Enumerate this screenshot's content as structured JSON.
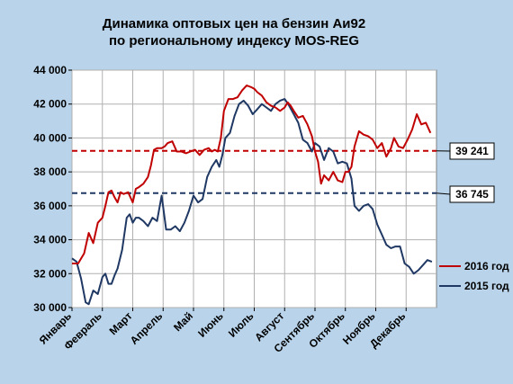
{
  "chart_data": {
    "type": "line",
    "title_lines": [
      "Динамика оптовых цен на бензин Аи92",
      "по региональному индексу MOS-REG"
    ],
    "ylim": [
      30000,
      44000
    ],
    "yticks": [
      30000,
      32000,
      34000,
      36000,
      38000,
      40000,
      42000,
      44000
    ],
    "ytick_labels": [
      "30 000",
      "32 000",
      "34 000",
      "36 000",
      "38 000",
      "40 000",
      "42 000",
      "44 000"
    ],
    "x_domain": [
      0,
      12
    ],
    "months": [
      "Январь",
      "Февраль",
      "Март",
      "Апрель",
      "Май",
      "Июнь",
      "Июль",
      "Август",
      "Сентябрь",
      "Октябрь",
      "Ноябрь",
      "Декабрь"
    ],
    "grid": true,
    "legend_position": "right",
    "series": [
      {
        "name": "2016 год",
        "color": "#c00000",
        "x": [
          0.0,
          0.2,
          0.4,
          0.55,
          0.7,
          0.85,
          1.0,
          1.1,
          1.2,
          1.3,
          1.4,
          1.5,
          1.6,
          1.7,
          1.85,
          2.0,
          2.1,
          2.2,
          2.35,
          2.5,
          2.6,
          2.7,
          2.8,
          2.95,
          3.05,
          3.15,
          3.3,
          3.45,
          3.6,
          3.75,
          3.9,
          4.05,
          4.2,
          4.35,
          4.5,
          4.6,
          4.7,
          4.8,
          4.9,
          5.0,
          5.15,
          5.3,
          5.45,
          5.6,
          5.75,
          5.9,
          6.0,
          6.1,
          6.25,
          6.4,
          6.55,
          6.7,
          6.85,
          7.0,
          7.1,
          7.2,
          7.3,
          7.45,
          7.6,
          7.75,
          7.9,
          8.0,
          8.1,
          8.2,
          8.3,
          8.45,
          8.6,
          8.75,
          8.9,
          9.0,
          9.1,
          9.2,
          9.3,
          9.45,
          9.6,
          9.75,
          9.9,
          10.05,
          10.2,
          10.35,
          10.5,
          10.6,
          10.75,
          10.9,
          11.05,
          11.2,
          11.35,
          11.5,
          11.65,
          11.8
        ],
        "values": [
          32600,
          32600,
          33200,
          34400,
          33800,
          35000,
          35300,
          36000,
          36800,
          36900,
          36500,
          36200,
          36800,
          36700,
          36800,
          36200,
          37000,
          37100,
          37300,
          37700,
          38400,
          39300,
          39400,
          39400,
          39500,
          39700,
          39800,
          39200,
          39200,
          39100,
          39200,
          39300,
          39000,
          39300,
          39400,
          39200,
          39300,
          39200,
          40000,
          41600,
          42300,
          42300,
          42400,
          42800,
          43100,
          43000,
          42900,
          42700,
          42500,
          42100,
          41900,
          41800,
          41600,
          41800,
          42100,
          41900,
          41600,
          41200,
          41300,
          40800,
          40100,
          39200,
          38600,
          37300,
          37800,
          37500,
          38000,
          37500,
          37400,
          38000,
          38000,
          38300,
          39500,
          40400,
          40200,
          40100,
          39900,
          39400,
          39700,
          38900,
          39400,
          40000,
          39500,
          39400,
          39900,
          40500,
          41400,
          40800,
          40900,
          40300
        ]
      },
      {
        "name": "2015 год",
        "color": "#1f3864",
        "x": [
          0.0,
          0.15,
          0.3,
          0.45,
          0.55,
          0.7,
          0.85,
          1.0,
          1.1,
          1.2,
          1.3,
          1.4,
          1.5,
          1.65,
          1.8,
          1.9,
          2.0,
          2.1,
          2.2,
          2.35,
          2.5,
          2.65,
          2.8,
          2.95,
          3.1,
          3.25,
          3.4,
          3.55,
          3.7,
          3.85,
          4.0,
          4.15,
          4.3,
          4.45,
          4.6,
          4.75,
          4.85,
          4.95,
          5.05,
          5.2,
          5.35,
          5.5,
          5.65,
          5.8,
          5.95,
          6.1,
          6.25,
          6.4,
          6.55,
          6.7,
          6.85,
          7.0,
          7.15,
          7.3,
          7.45,
          7.6,
          7.75,
          7.9,
          8.0,
          8.15,
          8.3,
          8.45,
          8.6,
          8.75,
          8.9,
          9.05,
          9.2,
          9.3,
          9.45,
          9.6,
          9.75,
          9.9,
          10.05,
          10.2,
          10.35,
          10.5,
          10.65,
          10.8,
          10.95,
          11.1,
          11.25,
          11.4,
          11.55,
          11.7,
          11.85
        ],
        "values": [
          32900,
          32700,
          31700,
          30300,
          30200,
          31000,
          30800,
          31800,
          32000,
          31400,
          31400,
          31900,
          32300,
          33400,
          35300,
          35500,
          35000,
          35300,
          35300,
          35100,
          34800,
          35300,
          35100,
          36600,
          34600,
          34600,
          34800,
          34500,
          35000,
          35700,
          36600,
          36200,
          36400,
          37700,
          38300,
          38700,
          38300,
          39000,
          40000,
          40300,
          41300,
          42000,
          42200,
          41900,
          41400,
          41700,
          42000,
          41800,
          41600,
          42000,
          42200,
          42300,
          41900,
          41400,
          40900,
          39900,
          39700,
          39200,
          39700,
          39500,
          38700,
          39400,
          39200,
          38500,
          38600,
          38500,
          37600,
          36000,
          35700,
          36000,
          36100,
          35800,
          34900,
          34300,
          33700,
          33500,
          33600,
          33600,
          32600,
          32400,
          32000,
          32200,
          32500,
          32800,
          32700
        ]
      }
    ],
    "reference_lines": [
      {
        "value": 39241,
        "label": "39 241",
        "color": "#c00000"
      },
      {
        "value": 36745,
        "label": "36 745",
        "color": "#1f3864"
      }
    ]
  }
}
